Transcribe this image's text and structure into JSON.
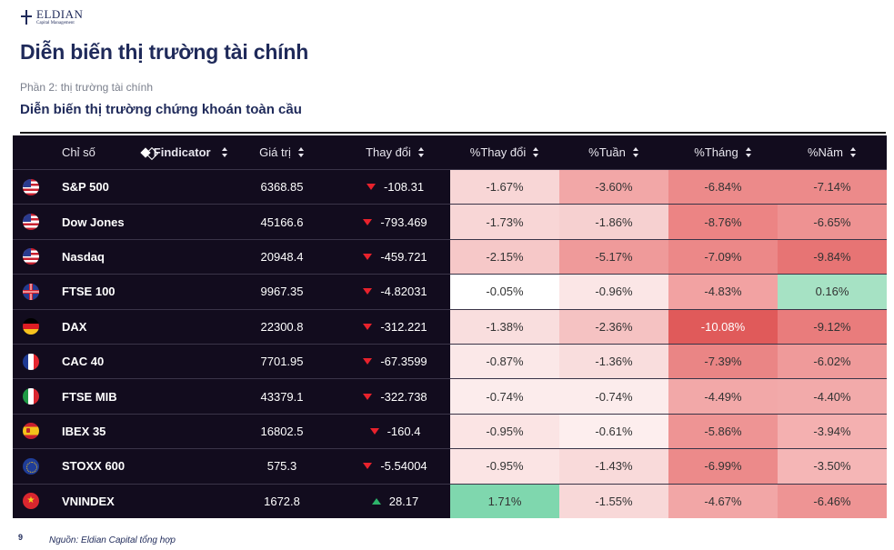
{
  "logo": {
    "name": "ELDIAN",
    "sub": "Capital Management"
  },
  "title": "Diễn biến thị trường tài chính",
  "section": "Phần 2: thị trường tài chính",
  "subtitle": "Diễn biến thị trường chứng khoán toàn cầu",
  "table": {
    "headers": {
      "name": "Chỉ số",
      "brand": "Findicator",
      "price": "Giá trị",
      "change": "Thay đổi",
      "pct_change": "%Thay đổi",
      "week": "%Tuần",
      "month": "%Tháng",
      "year": "%Năm"
    },
    "rows": [
      {
        "flag": "us",
        "name": "S&P 500",
        "price": "6368.85",
        "dir": "down",
        "change": "-108.31",
        "pct": "-1.67%",
        "week": "-3.60%",
        "month": "-6.84%",
        "year": "-7.14%",
        "colors": [
          "#f8d6d6",
          "#f2a7a7",
          "#ec8a8a",
          "#ec8a8a"
        ]
      },
      {
        "flag": "us",
        "name": "Dow Jones",
        "price": "45166.6",
        "dir": "down",
        "change": "-793.469",
        "pct": "-1.73%",
        "week": "-1.86%",
        "month": "-8.76%",
        "year": "-6.65%",
        "colors": [
          "#f8d6d6",
          "#f6d0d0",
          "#ec8484",
          "#ee9292"
        ]
      },
      {
        "flag": "us",
        "name": "Nasdaq",
        "price": "20948.4",
        "dir": "down",
        "change": "-459.721",
        "pct": "-2.15%",
        "week": "-5.17%",
        "month": "-7.09%",
        "year": "-9.84%",
        "colors": [
          "#f6c8c8",
          "#ef9a9a",
          "#ec8888",
          "#e77474"
        ]
      },
      {
        "flag": "uk",
        "name": "FTSE 100",
        "price": "9967.35",
        "dir": "down",
        "change": "-4.82031",
        "pct": "-0.05%",
        "week": "-0.96%",
        "month": "-4.83%",
        "year": "0.16%",
        "colors": [
          "#ffffff",
          "#fbe6e6",
          "#f2a2a2",
          "#a6e2c4"
        ]
      },
      {
        "flag": "de",
        "name": "DAX",
        "price": "22300.8",
        "dir": "down",
        "change": "-312.221",
        "pct": "-1.38%",
        "week": "-2.36%",
        "month": "-10.08%",
        "year": "-9.12%",
        "colors": [
          "#f9dede",
          "#f5c2c2",
          "#e05a5a",
          "#e97c7c"
        ]
      },
      {
        "flag": "fr",
        "name": "CAC 40",
        "price": "7701.95",
        "dir": "down",
        "change": "-67.3599",
        "pct": "-0.87%",
        "week": "-1.36%",
        "month": "-7.39%",
        "year": "-6.02%",
        "colors": [
          "#fbe8e8",
          "#f9dddd",
          "#ea8585",
          "#ef9a9a"
        ]
      },
      {
        "flag": "it",
        "name": "FTSE MIB",
        "price": "43379.1",
        "dir": "down",
        "change": "-322.738",
        "pct": "-0.74%",
        "week": "-0.74%",
        "month": "-4.49%",
        "year": "-4.40%",
        "colors": [
          "#fcecec",
          "#fcecec",
          "#f2a8a8",
          "#f2aaaa"
        ]
      },
      {
        "flag": "es",
        "name": "IBEX 35",
        "price": "16802.5",
        "dir": "down",
        "change": "-160.4",
        "pct": "-0.95%",
        "week": "-0.61%",
        "month": "-5.86%",
        "year": "-3.94%",
        "colors": [
          "#fbe4e4",
          "#fdeeee",
          "#ee9494",
          "#f4b0b0"
        ]
      },
      {
        "flag": "eu",
        "name": "STOXX 600",
        "price": "575.3",
        "dir": "down",
        "change": "-5.54004",
        "pct": "-0.95%",
        "week": "-1.43%",
        "month": "-6.99%",
        "year": "-3.50%",
        "colors": [
          "#fbe4e4",
          "#f9dada",
          "#ec8a8a",
          "#f5b6b6"
        ]
      },
      {
        "flag": "vn",
        "name": "VNINDEX",
        "price": "1672.8",
        "dir": "up",
        "change": "28.17",
        "pct": "1.71%",
        "week": "-1.55%",
        "month": "-4.67%",
        "year": "-6.46%",
        "colors": [
          "#7fd7ae",
          "#f8d8d8",
          "#f2a6a6",
          "#ee9494"
        ]
      }
    ]
  },
  "footer": {
    "page": "9",
    "source": "Nguồn: Eldian Capital tổng hợp"
  }
}
